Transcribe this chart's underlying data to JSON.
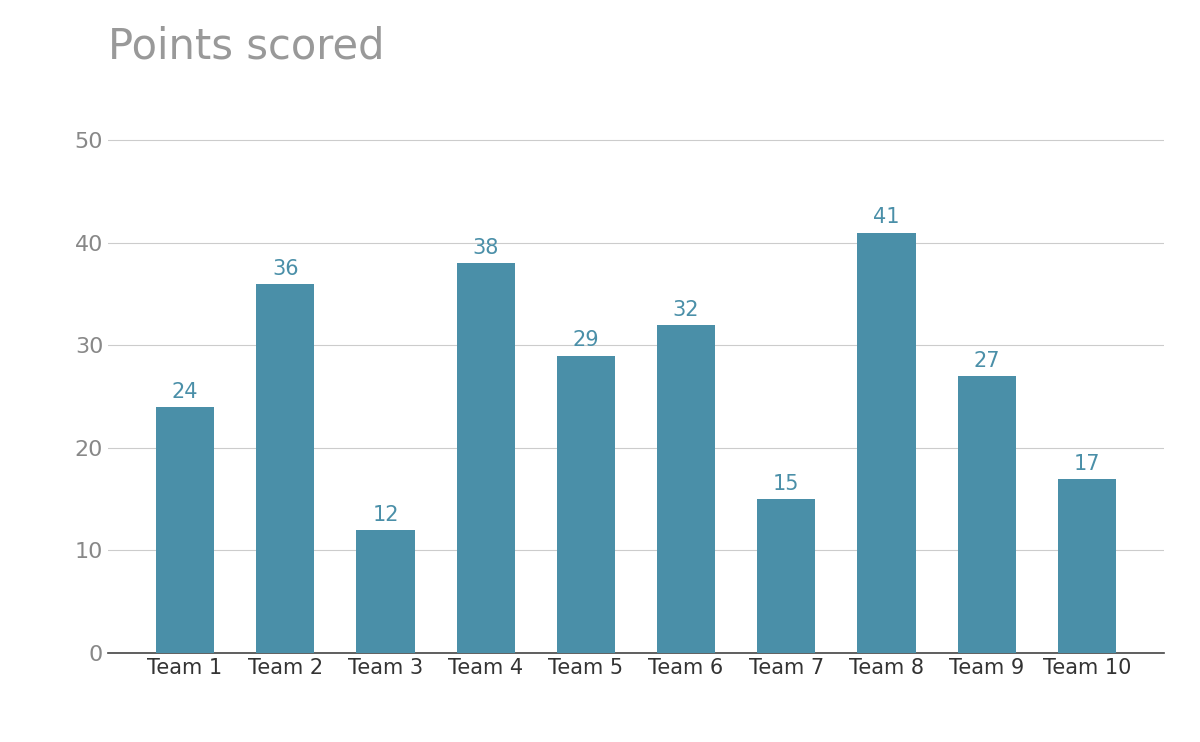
{
  "title": "Points scored",
  "categories": [
    "Team 1",
    "Team 2",
    "Team 3",
    "Team 4",
    "Team 5",
    "Team 6",
    "Team 7",
    "Team 8",
    "Team 9",
    "Team 10"
  ],
  "values": [
    24,
    36,
    12,
    38,
    29,
    32,
    15,
    41,
    27,
    17
  ],
  "bar_color": "#4a8fa8",
  "label_color": "#4a8fa8",
  "title_color": "#999999",
  "tick_color": "#888888",
  "grid_color": "#cccccc",
  "bottom_spine_color": "#444444",
  "xtick_color": "#333333",
  "background_color": "#ffffff",
  "ylim": [
    0,
    55
  ],
  "yticks": [
    0,
    10,
    20,
    30,
    40,
    50
  ],
  "title_fontsize": 30,
  "tick_fontsize": 16,
  "xtick_fontsize": 15,
  "label_fontsize": 15,
  "bar_width": 0.58
}
